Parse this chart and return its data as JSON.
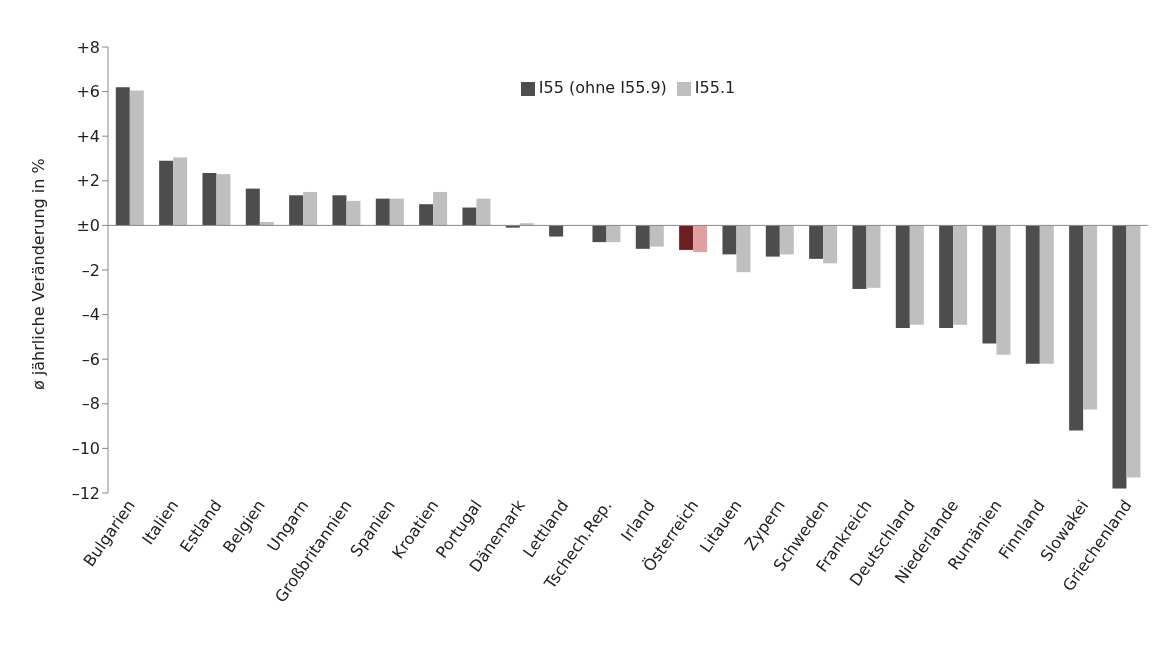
{
  "chart_data": {
    "type": "bar",
    "ylabel": "ø jährliche Veränderung in %",
    "categories": [
      "Bulgarien",
      "Italien",
      "Estland",
      "Belgien",
      "Ungarn",
      "Großbritannien",
      "Spanien",
      "Kroatien",
      "Portugal",
      "Dänemark",
      "Lettland",
      "Tschech.Rep.",
      "Irland",
      "Österreich",
      "Litauen",
      "Zypern",
      "Schweden",
      "Frankreich",
      "Deutschland",
      "Niederlande",
      "Rumänien",
      "Finnland",
      "Slowakei",
      "Griechenland"
    ],
    "series": [
      {
        "name": "I55 (ohne I55.9)",
        "color": "#4d4d4d",
        "colors": [
          "#4d4d4d",
          "#4d4d4d",
          "#4d4d4d",
          "#4d4d4d",
          "#4d4d4d",
          "#4d4d4d",
          "#4d4d4d",
          "#4d4d4d",
          "#4d4d4d",
          "#4d4d4d",
          "#4d4d4d",
          "#4d4d4d",
          "#4d4d4d",
          "#6b1f1f",
          "#4d4d4d",
          "#4d4d4d",
          "#4d4d4d",
          "#4d4d4d",
          "#4d4d4d",
          "#4d4d4d",
          "#4d4d4d",
          "#4d4d4d",
          "#4d4d4d",
          "#4d4d4d"
        ],
        "values": [
          6.2,
          2.9,
          2.35,
          1.65,
          1.35,
          1.35,
          1.2,
          0.95,
          0.8,
          -0.1,
          -0.5,
          -0.75,
          -1.05,
          -1.1,
          -1.3,
          -1.4,
          -1.5,
          -2.85,
          -4.6,
          -4.6,
          -5.3,
          -6.2,
          -9.2,
          -11.8
        ]
      },
      {
        "name": "I55.1",
        "color": "#bfbfbf",
        "colors": [
          "#bfbfbf",
          "#bfbfbf",
          "#bfbfbf",
          "#bfbfbf",
          "#bfbfbf",
          "#bfbfbf",
          "#bfbfbf",
          "#bfbfbf",
          "#bfbfbf",
          "#bfbfbf",
          "#bfbfbf",
          "#bfbfbf",
          "#bfbfbf",
          "#e0a0a0",
          "#bfbfbf",
          "#bfbfbf",
          "#bfbfbf",
          "#bfbfbf",
          "#bfbfbf",
          "#bfbfbf",
          "#bfbfbf",
          "#bfbfbf",
          "#bfbfbf",
          "#bfbfbf"
        ],
        "values": [
          6.05,
          3.05,
          2.3,
          0.15,
          1.5,
          1.1,
          1.2,
          1.5,
          1.2,
          0.1,
          0,
          -0.75,
          -0.95,
          -1.2,
          -2.1,
          -1.3,
          -1.7,
          -2.8,
          -4.45,
          -4.45,
          -5.8,
          -6.2,
          -8.25,
          -11.3
        ]
      }
    ],
    "ylim": [
      -12,
      8
    ],
    "yticks": [
      {
        "value": 8,
        "label": "+8"
      },
      {
        "value": 6,
        "label": "+6"
      },
      {
        "value": 4,
        "label": "+4"
      },
      {
        "value": 2,
        "label": "+2"
      },
      {
        "value": 0,
        "label": "±0"
      },
      {
        "value": -2,
        "label": "–2"
      },
      {
        "value": -4,
        "label": "–4"
      },
      {
        "value": -6,
        "label": "–6"
      },
      {
        "value": -8,
        "label": "–8"
      },
      {
        "value": -10,
        "label": "–10"
      },
      {
        "value": -12,
        "label": "–12"
      }
    ],
    "ref_lines": [
      {
        "axis": "y",
        "value": 0,
        "color": "#888888"
      }
    ],
    "legend": "top",
    "grid": false
  }
}
